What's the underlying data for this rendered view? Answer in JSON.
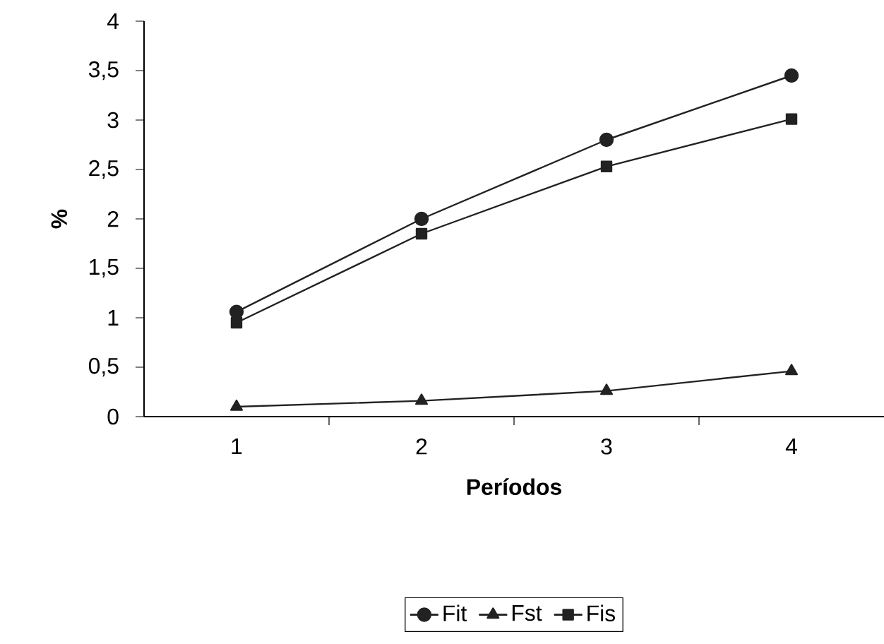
{
  "chart_data": {
    "type": "line",
    "xlabel": "Períodos",
    "ylabel": "%",
    "categories": [
      "1",
      "2",
      "3",
      "4"
    ],
    "series": [
      {
        "name": "Fit",
        "color": "#222222",
        "marker": "circle",
        "values": [
          1.06,
          2.0,
          2.8,
          3.45
        ]
      },
      {
        "name": "Fst",
        "color": "#222222",
        "marker": "triangle",
        "values": [
          0.1,
          0.16,
          0.26,
          0.46
        ]
      },
      {
        "name": "Fis",
        "color": "#222222",
        "marker": "square",
        "values": [
          0.95,
          1.85,
          2.53,
          3.01
        ]
      }
    ],
    "ylim": [
      0,
      4
    ],
    "yticks": [
      0,
      {
        "value": 0.5,
        "label": "0,5"
      },
      1,
      {
        "value": 1.5,
        "label": "1,5"
      },
      2,
      {
        "value": 2.5,
        "label": "2,5"
      },
      3,
      {
        "value": 3.5,
        "label": "3,5"
      },
      4
    ],
    "grid": false,
    "legend": "bottom",
    "line_style": "solid"
  }
}
